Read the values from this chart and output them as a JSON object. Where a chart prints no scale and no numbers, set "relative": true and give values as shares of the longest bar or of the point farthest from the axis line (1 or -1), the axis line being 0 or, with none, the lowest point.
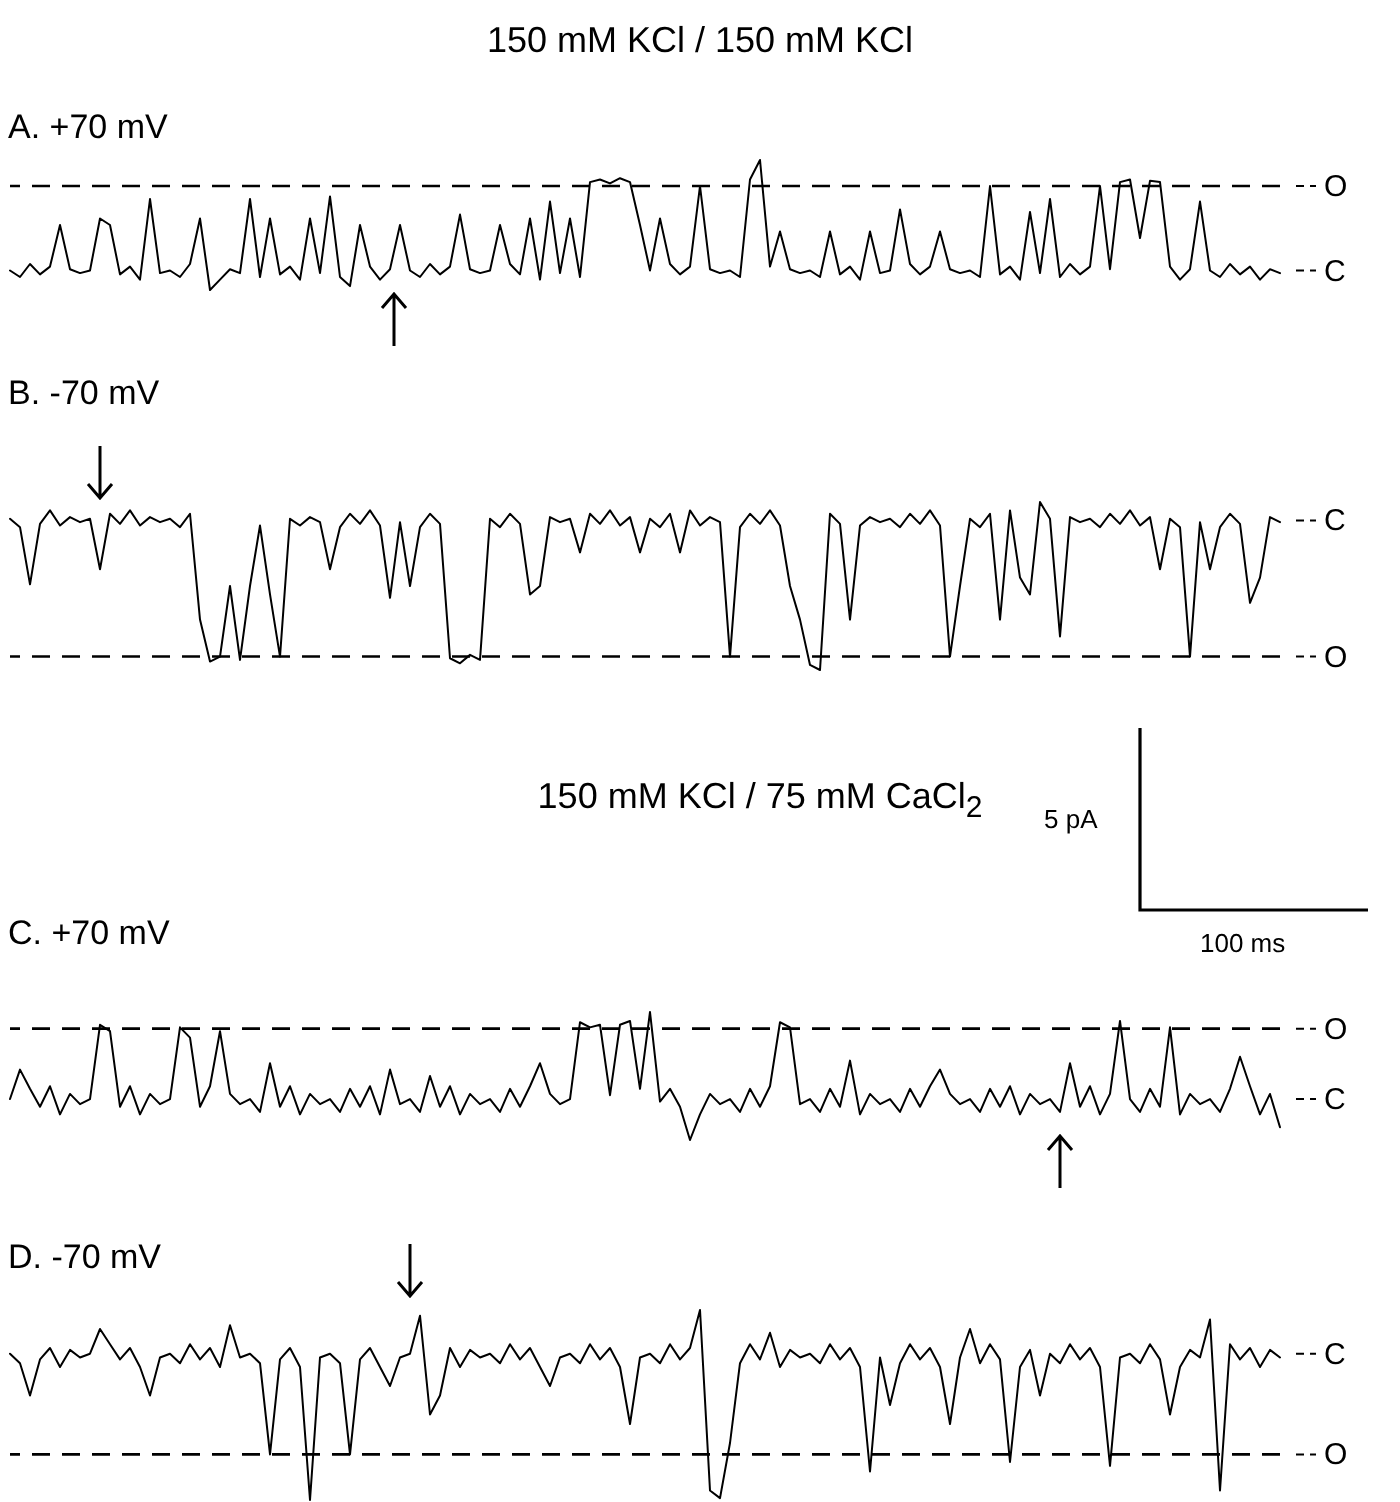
{
  "chart_data": [
    {
      "type": "line",
      "relative": true,
      "title": "150 mM KCl / 150 mM KCl",
      "subtitle": "A. +70 mV",
      "color": "#000000",
      "categories": [
        null,
        null,
        null,
        null,
        null,
        null,
        null,
        null,
        null,
        null,
        null,
        null,
        null,
        null,
        null,
        null,
        null,
        null,
        null,
        null,
        null,
        null,
        null,
        null,
        null,
        null,
        null,
        null,
        null,
        null,
        null,
        null,
        null,
        null,
        null,
        null,
        null,
        null,
        null,
        null,
        null,
        null,
        null,
        null,
        null,
        null,
        null,
        null,
        null,
        null,
        null,
        null,
        null,
        null,
        null,
        null,
        null,
        null,
        null,
        null,
        null,
        null,
        null,
        null,
        null,
        null,
        null,
        null,
        null,
        null,
        null,
        null,
        null,
        null,
        null,
        null,
        null,
        null,
        null,
        null,
        null,
        null,
        null,
        null,
        null,
        null,
        null,
        null,
        null,
        null,
        null,
        null,
        null,
        null,
        null,
        null,
        null,
        null,
        null,
        null,
        null,
        null,
        null,
        null,
        null,
        null,
        null,
        null,
        null,
        null,
        null,
        null,
        null,
        null,
        null,
        null,
        null,
        null,
        null,
        null,
        null,
        null,
        null,
        null,
        null,
        null,
        null,
        null
      ],
      "values": [
        0.15,
        0.1,
        0.2,
        0.12,
        0.18,
        0.5,
        0.16,
        0.13,
        0.15,
        0.55,
        0.5,
        0.12,
        0.18,
        0.08,
        0.7,
        0.13,
        0.15,
        0.1,
        0.2,
        0.55,
        0,
        0.08,
        0.16,
        0.13,
        0.7,
        0.1,
        0.55,
        0.12,
        0.18,
        0.08,
        0.55,
        0.13,
        0.72,
        0.1,
        0.03,
        0.5,
        0.18,
        0.08,
        0.16,
        0.5,
        0.15,
        0.1,
        0.2,
        0.12,
        0.18,
        0.58,
        0.16,
        0.13,
        0.15,
        0.5,
        0.2,
        0.12,
        0.55,
        0.08,
        0.68,
        0.13,
        0.55,
        0.1,
        0.83,
        0.85,
        0.82,
        0.86,
        0.83,
        0.5,
        0.15,
        0.55,
        0.2,
        0.12,
        0.18,
        0.8,
        0.16,
        0.13,
        0.15,
        0.1,
        0.85,
        1,
        0.18,
        0.45,
        0.16,
        0.13,
        0.15,
        0.1,
        0.45,
        0.12,
        0.18,
        0.08,
        0.45,
        0.13,
        0.15,
        0.62,
        0.2,
        0.12,
        0.18,
        0.45,
        0.16,
        0.13,
        0.15,
        0.1,
        0.8,
        0.12,
        0.18,
        0.08,
        0.6,
        0.13,
        0.7,
        0.1,
        0.2,
        0.12,
        0.18,
        0.8,
        0.16,
        0.83,
        0.85,
        0.4,
        0.84,
        0.83,
        0.18,
        0.08,
        0.16,
        0.68,
        0.15,
        0.1,
        0.2,
        0.12,
        0.18,
        0.08,
        0.16,
        0.13
      ],
      "ref_lines": [
        {
          "axis": "y",
          "value": 0.8,
          "label": "O",
          "line_style": "dashed"
        },
        {
          "axis": "y",
          "value": 0.15,
          "label": "C"
        }
      ]
    },
    {
      "type": "line",
      "relative": true,
      "subtitle": "B. -70 mV",
      "color": "#000000",
      "categories": [
        null,
        null,
        null,
        null,
        null,
        null,
        null,
        null,
        null,
        null,
        null,
        null,
        null,
        null,
        null,
        null,
        null,
        null,
        null,
        null,
        null,
        null,
        null,
        null,
        null,
        null,
        null,
        null,
        null,
        null,
        null,
        null,
        null,
        null,
        null,
        null,
        null,
        null,
        null,
        null,
        null,
        null,
        null,
        null,
        null,
        null,
        null,
        null,
        null,
        null,
        null,
        null,
        null,
        null,
        null,
        null,
        null,
        null,
        null,
        null,
        null,
        null,
        null,
        null,
        null,
        null,
        null,
        null,
        null,
        null,
        null,
        null,
        null,
        null,
        null,
        null,
        null,
        null,
        null,
        null,
        null,
        null,
        null,
        null,
        null,
        null,
        null,
        null,
        null,
        null,
        null,
        null,
        null,
        null,
        null,
        null,
        null,
        null,
        null,
        null,
        null,
        null,
        null,
        null,
        null,
        null,
        null,
        null,
        null,
        null,
        null,
        null,
        null,
        null,
        null,
        null,
        null,
        null,
        null,
        null,
        null,
        null,
        null,
        null,
        null,
        null,
        null,
        null
      ],
      "values": [
        0.9,
        0.85,
        0.51,
        0.87,
        0.95,
        0.86,
        0.91,
        0.88,
        0.9,
        0.6,
        0.93,
        0.87,
        0.95,
        0.86,
        0.91,
        0.88,
        0.9,
        0.85,
        0.93,
        0.3,
        0.05,
        0.08,
        0.5,
        0.06,
        0.5,
        0.86,
        0.45,
        0.08,
        0.9,
        0.86,
        0.91,
        0.88,
        0.6,
        0.85,
        0.93,
        0.87,
        0.95,
        0.86,
        0.43,
        0.88,
        0.5,
        0.85,
        0.93,
        0.87,
        0.07,
        0.04,
        0.09,
        0.06,
        0.9,
        0.85,
        0.93,
        0.87,
        0.45,
        0.5,
        0.91,
        0.88,
        0.9,
        0.7,
        0.93,
        0.87,
        0.95,
        0.86,
        0.91,
        0.7,
        0.9,
        0.85,
        0.93,
        0.7,
        0.95,
        0.86,
        0.91,
        0.88,
        0.08,
        0.85,
        0.93,
        0.87,
        0.95,
        0.86,
        0.5,
        0.3,
        0.03,
        0,
        0.93,
        0.87,
        0.3,
        0.86,
        0.91,
        0.88,
        0.9,
        0.85,
        0.93,
        0.87,
        0.95,
        0.86,
        0.08,
        0.5,
        0.9,
        0.85,
        0.93,
        0.3,
        0.95,
        0.55,
        0.45,
        1,
        0.9,
        0.2,
        0.91,
        0.88,
        0.9,
        0.85,
        0.93,
        0.87,
        0.95,
        0.86,
        0.91,
        0.6,
        0.9,
        0.85,
        0.08,
        0.88,
        0.6,
        0.85,
        0.93,
        0.87,
        0.4,
        0.55,
        0.91,
        0.88
      ],
      "ref_lines": [
        {
          "axis": "y",
          "value": 0.89,
          "label": "C"
        },
        {
          "axis": "y",
          "value": 0.08,
          "label": "O",
          "line_style": "dashed"
        }
      ]
    },
    {
      "type": "line",
      "relative": true,
      "title": "150 mM KCl / 75 mM CaCl$_{2}$",
      "subtitle": "C. +70 mV",
      "color": "#000000",
      "categories": [
        null,
        null,
        null,
        null,
        null,
        null,
        null,
        null,
        null,
        null,
        null,
        null,
        null,
        null,
        null,
        null,
        null,
        null,
        null,
        null,
        null,
        null,
        null,
        null,
        null,
        null,
        null,
        null,
        null,
        null,
        null,
        null,
        null,
        null,
        null,
        null,
        null,
        null,
        null,
        null,
        null,
        null,
        null,
        null,
        null,
        null,
        null,
        null,
        null,
        null,
        null,
        null,
        null,
        null,
        null,
        null,
        null,
        null,
        null,
        null,
        null,
        null,
        null,
        null,
        null,
        null,
        null,
        null,
        null,
        null,
        null,
        null,
        null,
        null,
        null,
        null,
        null,
        null,
        null,
        null,
        null,
        null,
        null,
        null,
        null,
        null,
        null,
        null,
        null,
        null,
        null,
        null,
        null,
        null,
        null,
        null,
        null,
        null,
        null,
        null,
        null,
        null,
        null,
        null,
        null,
        null,
        null,
        null,
        null,
        null,
        null,
        null,
        null,
        null,
        null,
        null,
        null,
        null,
        null,
        null,
        null,
        null,
        null,
        null,
        null,
        null,
        null,
        null
      ],
      "values": [
        0.32,
        0.55,
        0.4,
        0.26,
        0.42,
        0.2,
        0.36,
        0.28,
        0.32,
        0.9,
        0.85,
        0.26,
        0.42,
        0.2,
        0.36,
        0.28,
        0.32,
        0.88,
        0.8,
        0.26,
        0.42,
        0.85,
        0.36,
        0.28,
        0.32,
        0.22,
        0.6,
        0.26,
        0.42,
        0.2,
        0.36,
        0.28,
        0.32,
        0.22,
        0.4,
        0.26,
        0.42,
        0.2,
        0.55,
        0.28,
        0.32,
        0.22,
        0.5,
        0.26,
        0.42,
        0.2,
        0.36,
        0.28,
        0.32,
        0.22,
        0.4,
        0.26,
        0.42,
        0.6,
        0.36,
        0.28,
        0.32,
        0.92,
        0.88,
        0.9,
        0.35,
        0.9,
        0.93,
        0.4,
        1,
        0.3,
        0.4,
        0.26,
        0,
        0.2,
        0.36,
        0.28,
        0.32,
        0.22,
        0.4,
        0.26,
        0.42,
        0.92,
        0.88,
        0.28,
        0.32,
        0.22,
        0.4,
        0.26,
        0.62,
        0.2,
        0.36,
        0.28,
        0.32,
        0.22,
        0.4,
        0.26,
        0.42,
        0.55,
        0.36,
        0.28,
        0.32,
        0.22,
        0.4,
        0.26,
        0.42,
        0.2,
        0.36,
        0.28,
        0.32,
        0.22,
        0.6,
        0.26,
        0.42,
        0.2,
        0.36,
        0.93,
        0.32,
        0.22,
        0.4,
        0.26,
        0.88,
        0.2,
        0.36,
        0.28,
        0.32,
        0.22,
        0.4,
        0.65,
        0.42,
        0.2,
        0.36,
        0.1
      ],
      "ref_lines": [
        {
          "axis": "y",
          "value": 0.87,
          "label": "O",
          "line_style": "dashed"
        },
        {
          "axis": "y",
          "value": 0.32,
          "label": "C"
        }
      ],
      "annotations": [
        "5 pA",
        "100 ms"
      ]
    },
    {
      "type": "line",
      "relative": true,
      "subtitle": "D. -70 mV",
      "color": "#000000",
      "categories": [
        null,
        null,
        null,
        null,
        null,
        null,
        null,
        null,
        null,
        null,
        null,
        null,
        null,
        null,
        null,
        null,
        null,
        null,
        null,
        null,
        null,
        null,
        null,
        null,
        null,
        null,
        null,
        null,
        null,
        null,
        null,
        null,
        null,
        null,
        null,
        null,
        null,
        null,
        null,
        null,
        null,
        null,
        null,
        null,
        null,
        null,
        null,
        null,
        null,
        null,
        null,
        null,
        null,
        null,
        null,
        null,
        null,
        null,
        null,
        null,
        null,
        null,
        null,
        null,
        null,
        null,
        null,
        null,
        null,
        null,
        null,
        null,
        null,
        null,
        null,
        null,
        null,
        null,
        null,
        null,
        null,
        null,
        null,
        null,
        null,
        null,
        null,
        null,
        null,
        null,
        null,
        null,
        null,
        null,
        null,
        null,
        null,
        null,
        null,
        null,
        null,
        null,
        null,
        null,
        null,
        null,
        null,
        null,
        null,
        null,
        null,
        null,
        null,
        null,
        null,
        null,
        null,
        null,
        null,
        null,
        null,
        null,
        null,
        null,
        null,
        null,
        null,
        null
      ],
      "values": [
        0.77,
        0.72,
        0.55,
        0.74,
        0.8,
        0.7,
        0.79,
        0.75,
        0.77,
        0.9,
        0.82,
        0.74,
        0.8,
        0.7,
        0.55,
        0.75,
        0.77,
        0.72,
        0.82,
        0.74,
        0.8,
        0.7,
        0.92,
        0.75,
        0.77,
        0.72,
        0.24,
        0.74,
        0.8,
        0.7,
        0,
        0.75,
        0.77,
        0.72,
        0.24,
        0.74,
        0.8,
        0.7,
        0.6,
        0.75,
        0.77,
        0.97,
        0.45,
        0.55,
        0.8,
        0.7,
        0.79,
        0.75,
        0.77,
        0.72,
        0.82,
        0.74,
        0.8,
        0.7,
        0.6,
        0.75,
        0.77,
        0.72,
        0.82,
        0.74,
        0.8,
        0.7,
        0.4,
        0.75,
        0.77,
        0.72,
        0.82,
        0.74,
        0.8,
        1,
        0.05,
        0.01,
        0.3,
        0.72,
        0.82,
        0.74,
        0.88,
        0.7,
        0.79,
        0.75,
        0.77,
        0.72,
        0.82,
        0.74,
        0.8,
        0.7,
        0.15,
        0.75,
        0.5,
        0.72,
        0.82,
        0.74,
        0.8,
        0.7,
        0.4,
        0.75,
        0.9,
        0.72,
        0.82,
        0.74,
        0.2,
        0.7,
        0.79,
        0.55,
        0.77,
        0.72,
        0.82,
        0.74,
        0.8,
        0.7,
        0.18,
        0.75,
        0.77,
        0.72,
        0.82,
        0.74,
        0.45,
        0.7,
        0.79,
        0.75,
        0.95,
        0.05,
        0.82,
        0.74,
        0.8,
        0.7,
        0.79,
        0.75
      ],
      "ref_lines": [
        {
          "axis": "y",
          "value": 0.77,
          "label": "C"
        },
        {
          "axis": "y",
          "value": 0.24,
          "label": "O",
          "line_style": "dashed"
        }
      ]
    }
  ]
}
